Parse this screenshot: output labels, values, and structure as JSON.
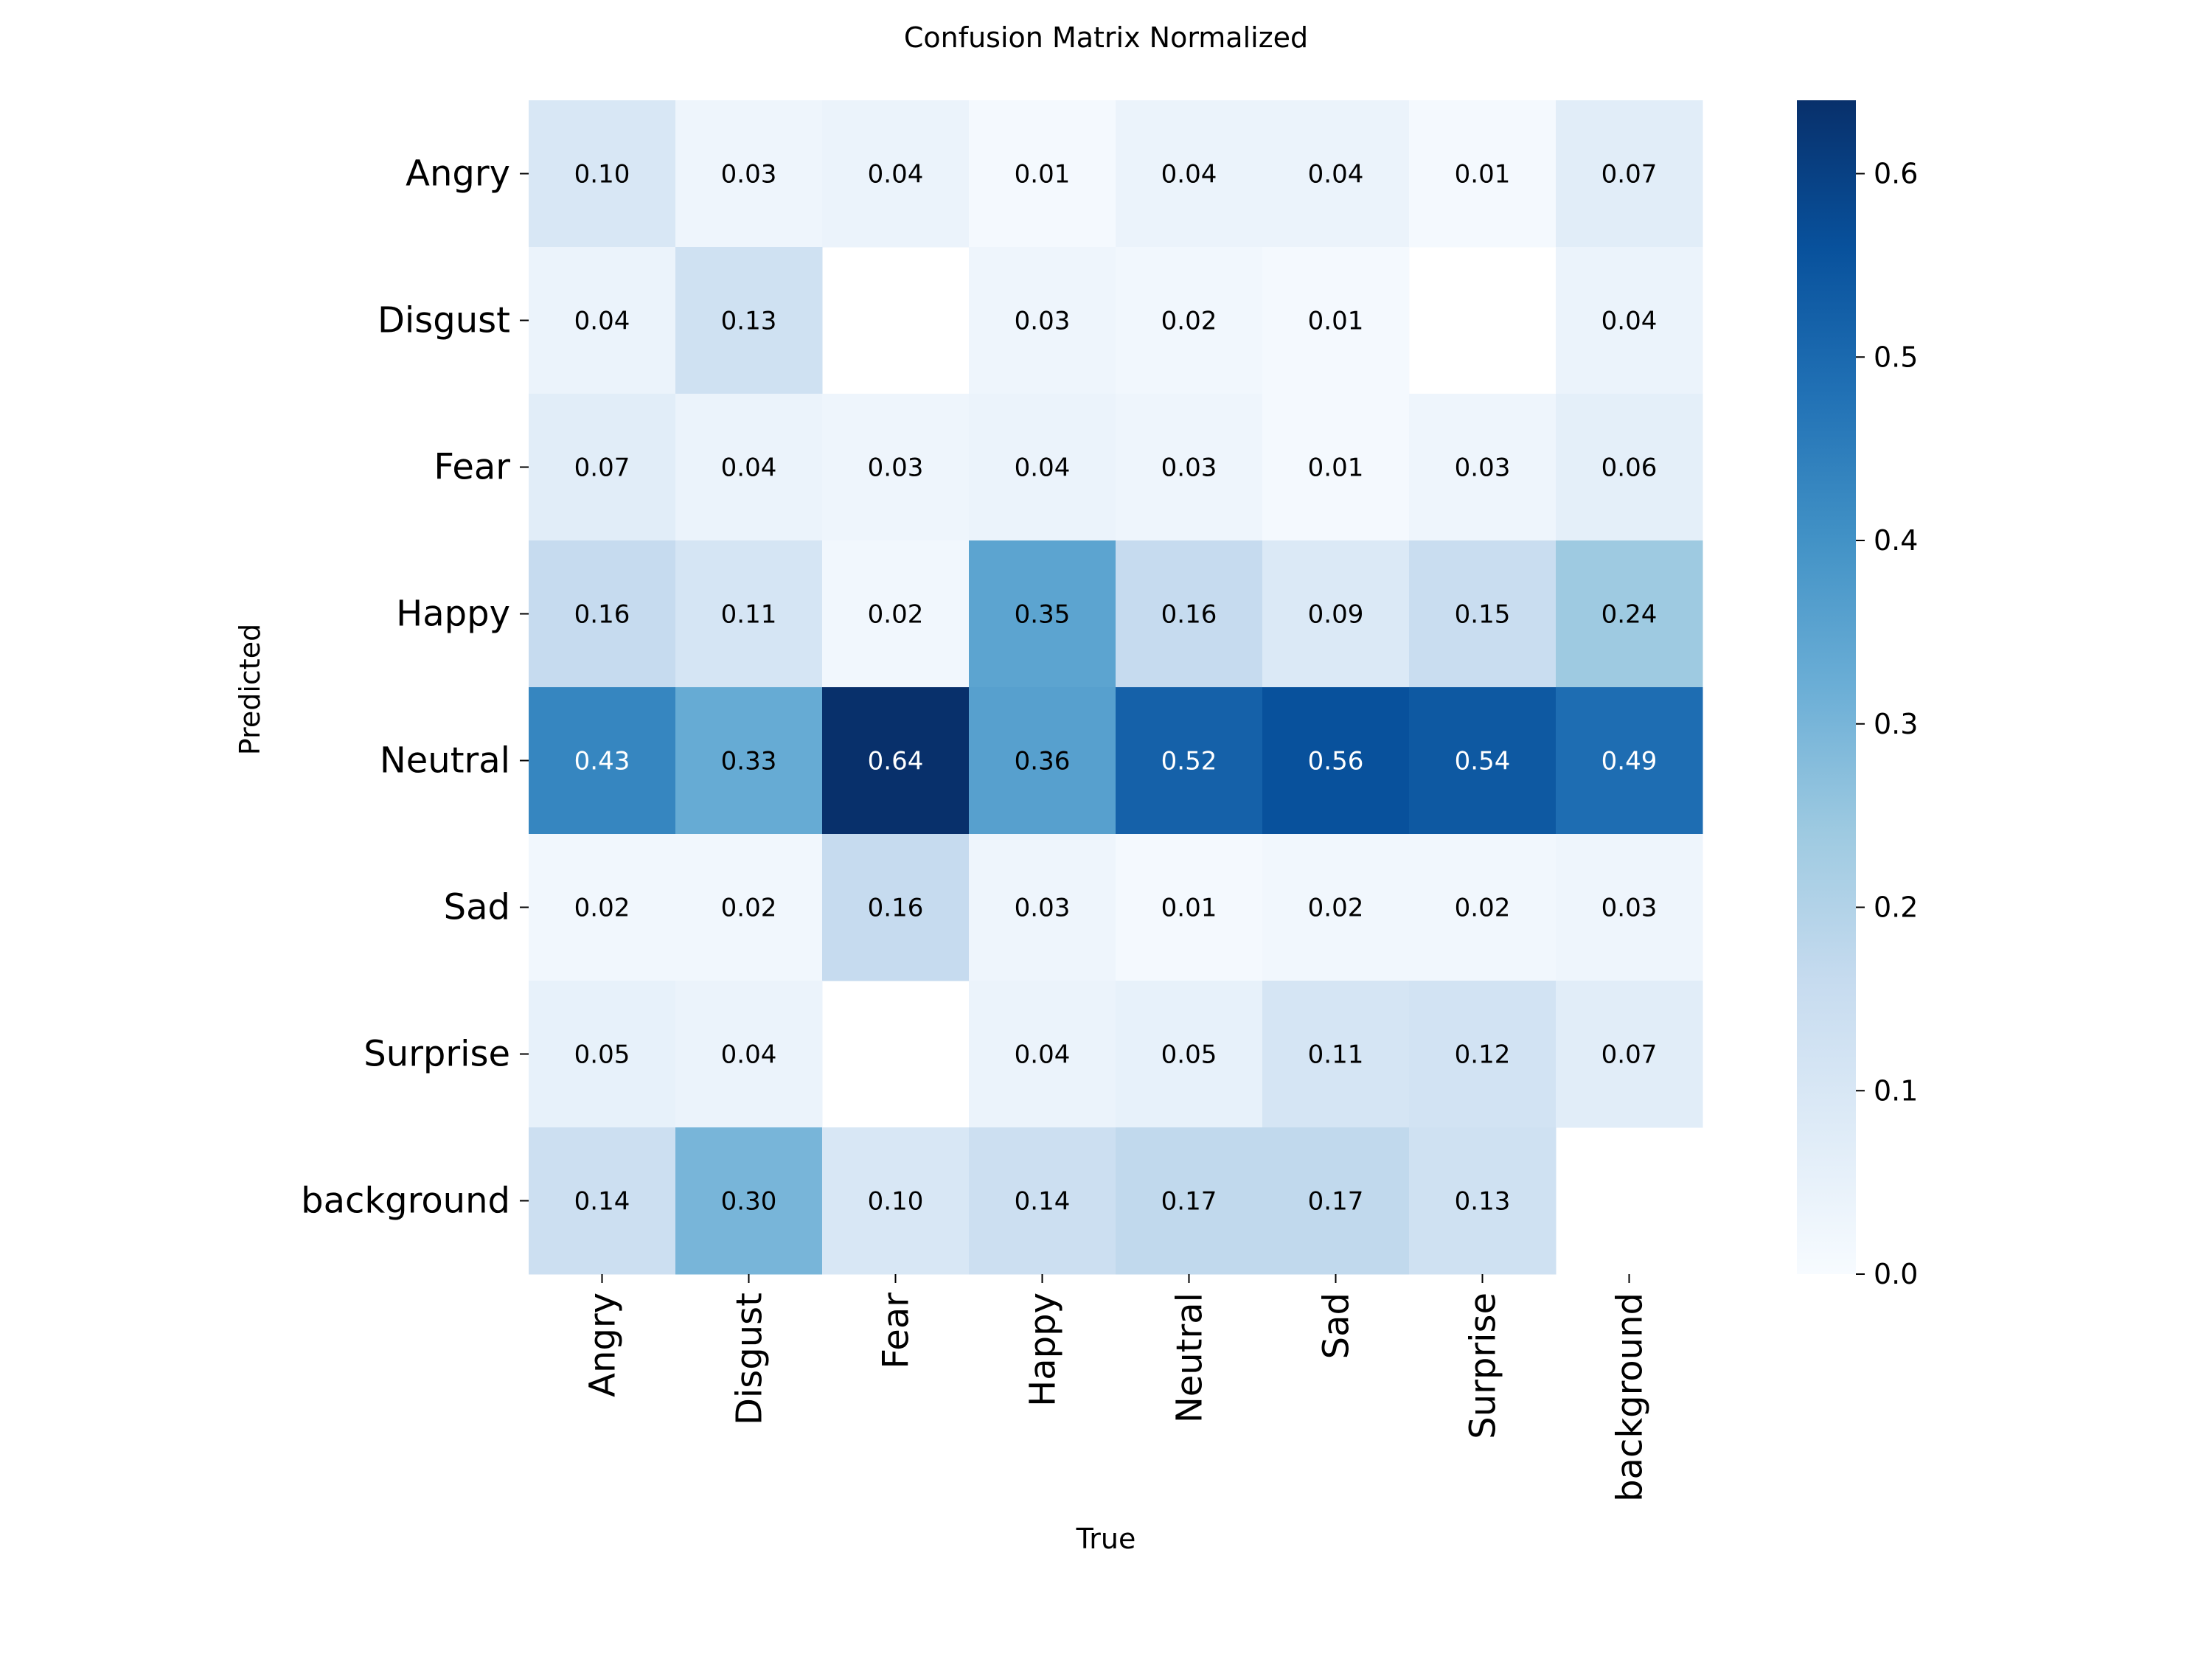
{
  "chart_data": {
    "type": "heatmap",
    "title": "Confusion Matrix Normalized",
    "xlabel": "True",
    "ylabel": "Predicted",
    "x_categories": [
      "Angry",
      "Disgust",
      "Fear",
      "Happy",
      "Neutral",
      "Sad",
      "Surprise",
      "background"
    ],
    "y_categories": [
      "Angry",
      "Disgust",
      "Fear",
      "Happy",
      "Neutral",
      "Sad",
      "Surprise",
      "background"
    ],
    "values": [
      [
        0.1,
        0.03,
        0.04,
        0.01,
        0.04,
        0.04,
        0.01,
        0.07
      ],
      [
        0.04,
        0.13,
        null,
        0.03,
        0.02,
        0.01,
        null,
        0.04
      ],
      [
        0.07,
        0.04,
        0.03,
        0.04,
        0.03,
        0.01,
        0.03,
        0.06
      ],
      [
        0.16,
        0.11,
        0.02,
        0.35,
        0.16,
        0.09,
        0.15,
        0.24
      ],
      [
        0.43,
        0.33,
        0.64,
        0.36,
        0.52,
        0.56,
        0.54,
        0.49
      ],
      [
        0.02,
        0.02,
        0.16,
        0.03,
        0.01,
        0.02,
        0.02,
        0.03
      ],
      [
        0.05,
        0.04,
        null,
        0.04,
        0.05,
        0.11,
        0.12,
        0.07
      ],
      [
        0.14,
        0.3,
        0.1,
        0.14,
        0.17,
        0.17,
        0.13,
        null
      ]
    ],
    "value_format": "0.00",
    "colormap": "Blues",
    "colorbar": {
      "range": [
        0.0,
        0.64
      ],
      "ticks": [
        0.0,
        0.1,
        0.2,
        0.3,
        0.4,
        0.5,
        0.6
      ],
      "tick_labels": [
        "0.0",
        "0.1",
        "0.2",
        "0.3",
        "0.4",
        "0.5",
        "0.6"
      ]
    },
    "colors": {
      "low": "#f7fbff",
      "high": "#08306b",
      "text_dark": "#000000",
      "text_light": "#ffffff"
    }
  }
}
